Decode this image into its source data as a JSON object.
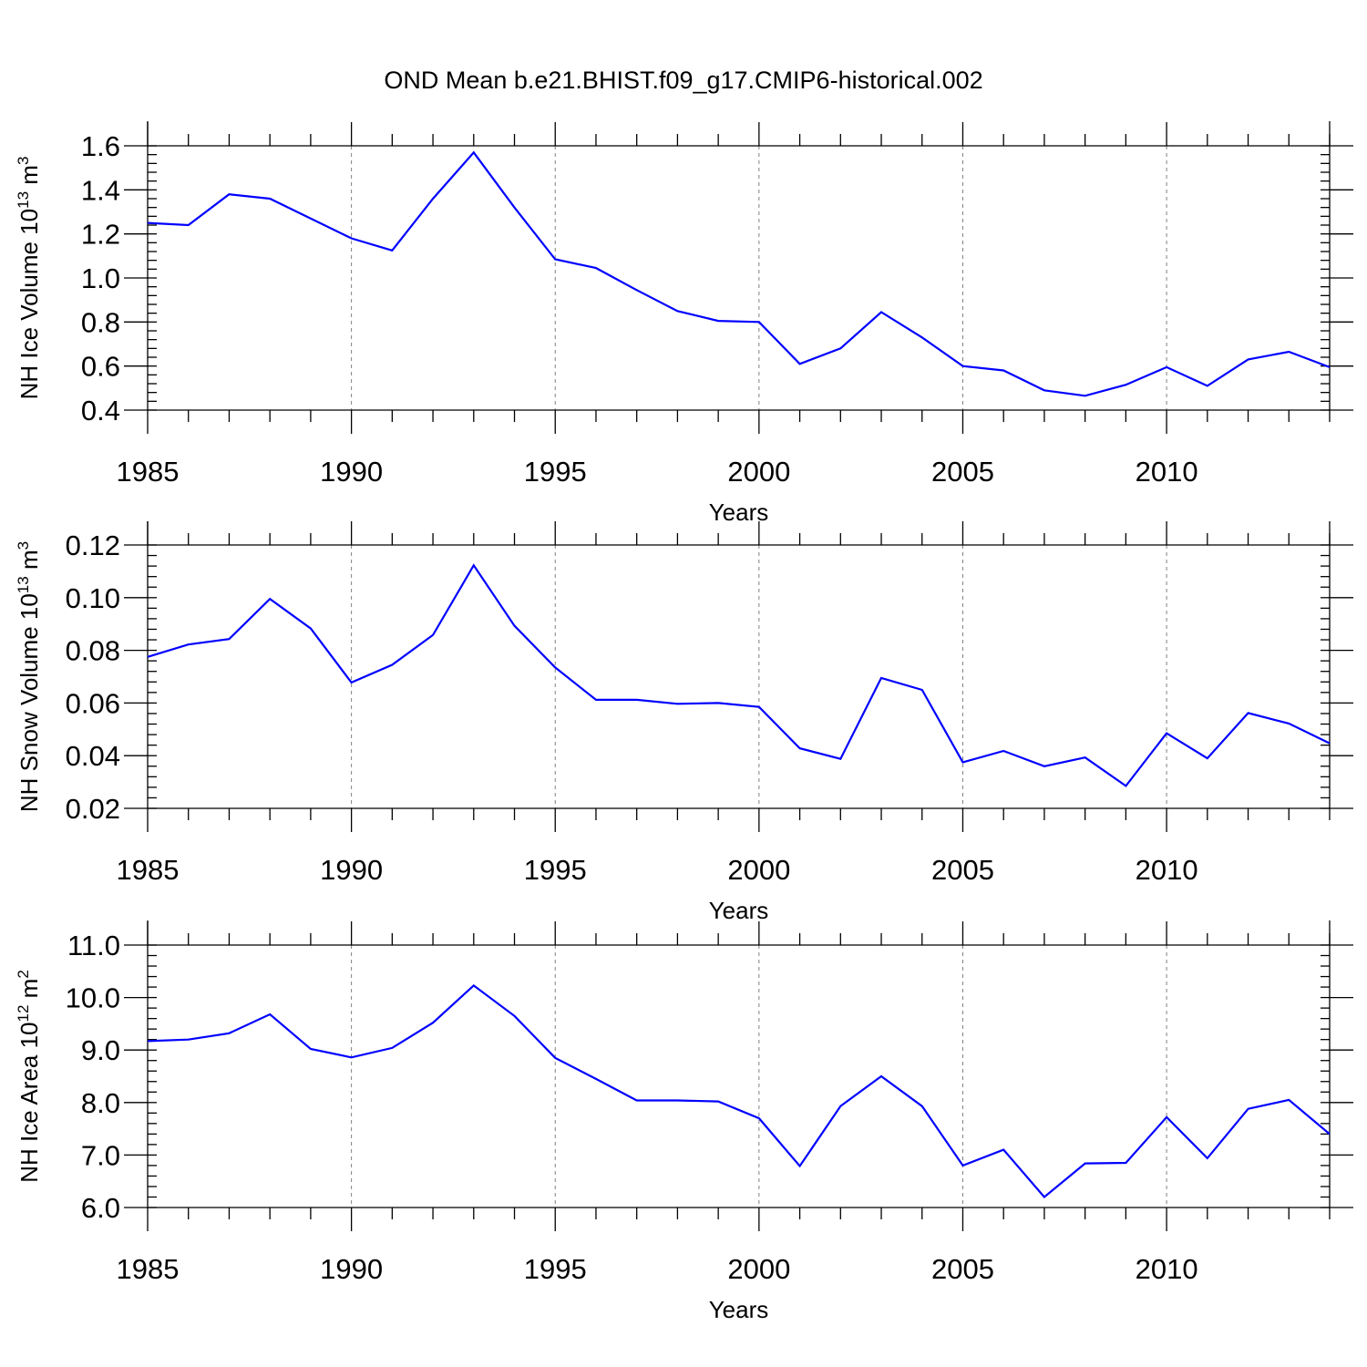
{
  "figure": {
    "title": "OND Mean b.e21.BHIST.f09_g17.CMIP6-historical.002",
    "line_color": "#0000ff"
  },
  "chart_data": [
    {
      "type": "line",
      "title": "OND Mean b.e21.BHIST.f09_g17.CMIP6-historical.002",
      "xlabel": "Years",
      "ylabel": "NH Ice Volume 10",
      "ylabel_exponent": "13",
      "ylabel_unit": "m",
      "ylabel_unit_power": "3",
      "xlim": [
        1985,
        2014
      ],
      "ylim": [
        0.4,
        1.6
      ],
      "x_ticks": [
        1985,
        1990,
        1995,
        2000,
        2005,
        2010
      ],
      "y_ticks": [
        "0.4",
        "0.6",
        "0.8",
        "1.0",
        "1.2",
        "1.4",
        "1.6"
      ],
      "y_tick_values": [
        0.4,
        0.6,
        0.8,
        1.0,
        1.2,
        1.4,
        1.6
      ],
      "y_minor_step": 0.04,
      "grid": "vertical dashed at major x ticks",
      "series": [
        {
          "name": "NH Ice Volume",
          "x": [
            1985,
            1986,
            1987,
            1988,
            1989,
            1990,
            1991,
            1992,
            1993,
            1994,
            1995,
            1996,
            1997,
            1998,
            1999,
            2000,
            2001,
            2002,
            2003,
            2004,
            2005,
            2006,
            2007,
            2008,
            2009,
            2010,
            2011,
            2012,
            2013,
            2014
          ],
          "values": [
            1.25,
            1.24,
            1.38,
            1.36,
            1.27,
            1.18,
            1.125,
            1.36,
            1.57,
            1.32,
            1.085,
            1.045,
            0.945,
            0.85,
            0.805,
            0.8,
            0.61,
            0.68,
            0.845,
            0.73,
            0.6,
            0.58,
            0.49,
            0.465,
            0.515,
            0.595,
            0.51,
            0.63,
            0.665,
            0.595
          ]
        }
      ]
    },
    {
      "type": "line",
      "xlabel": "Years",
      "ylabel": "NH Snow Volume 10",
      "ylabel_exponent": "13",
      "ylabel_unit": "m",
      "ylabel_unit_power": "3",
      "xlim": [
        1985,
        2014
      ],
      "ylim": [
        0.02,
        0.12
      ],
      "x_ticks": [
        1985,
        1990,
        1995,
        2000,
        2005,
        2010
      ],
      "y_ticks": [
        "0.02",
        "0.04",
        "0.06",
        "0.08",
        "0.10",
        "0.12"
      ],
      "y_tick_values": [
        0.02,
        0.04,
        0.06,
        0.08,
        0.1,
        0.12
      ],
      "y_minor_step": 0.004,
      "grid": "vertical dashed at major x ticks",
      "series": [
        {
          "name": "NH Snow Volume",
          "x": [
            1985,
            1986,
            1987,
            1988,
            1989,
            1990,
            1991,
            1992,
            1993,
            1994,
            1995,
            1996,
            1997,
            1998,
            1999,
            2000,
            2001,
            2002,
            2003,
            2004,
            2005,
            2006,
            2007,
            2008,
            2009,
            2010,
            2011,
            2012,
            2013,
            2014
          ],
          "values": [
            0.0775,
            0.0822,
            0.0843,
            0.0995,
            0.0883,
            0.0678,
            0.0745,
            0.0858,
            0.1123,
            0.0893,
            0.0735,
            0.0612,
            0.0612,
            0.0597,
            0.06,
            0.0585,
            0.0428,
            0.0388,
            0.0695,
            0.065,
            0.0375,
            0.0418,
            0.036,
            0.0393,
            0.0285,
            0.0485,
            0.039,
            0.0562,
            0.0522,
            0.0447
          ]
        }
      ]
    },
    {
      "type": "line",
      "xlabel": "Years",
      "ylabel": "NH Ice Area 10",
      "ylabel_exponent": "12",
      "ylabel_unit": "m",
      "ylabel_unit_power": "2",
      "xlim": [
        1985,
        2014
      ],
      "ylim": [
        6.0,
        11.0
      ],
      "x_ticks": [
        1985,
        1990,
        1995,
        2000,
        2005,
        2010
      ],
      "y_ticks": [
        "6.0",
        "7.0",
        "8.0",
        "9.0",
        "10.0",
        "11.0"
      ],
      "y_tick_values": [
        6.0,
        7.0,
        8.0,
        9.0,
        10.0,
        11.0
      ],
      "y_minor_step": 0.2,
      "grid": "vertical dashed at major x ticks",
      "series": [
        {
          "name": "NH Ice Area",
          "x": [
            1985,
            1986,
            1987,
            1988,
            1989,
            1990,
            1991,
            1992,
            1993,
            1994,
            1995,
            1996,
            1997,
            1998,
            1999,
            2000,
            2001,
            2002,
            2003,
            2004,
            2005,
            2006,
            2007,
            2008,
            2009,
            2010,
            2011,
            2012,
            2013,
            2014
          ],
          "values": [
            9.17,
            9.2,
            9.32,
            9.68,
            9.02,
            8.86,
            9.04,
            9.52,
            10.23,
            9.65,
            8.85,
            8.45,
            8.04,
            8.04,
            8.02,
            7.7,
            6.79,
            7.93,
            8.5,
            7.93,
            6.8,
            7.1,
            6.2,
            6.84,
            6.85,
            7.72,
            6.94,
            7.88,
            8.05,
            7.4
          ]
        }
      ]
    }
  ]
}
